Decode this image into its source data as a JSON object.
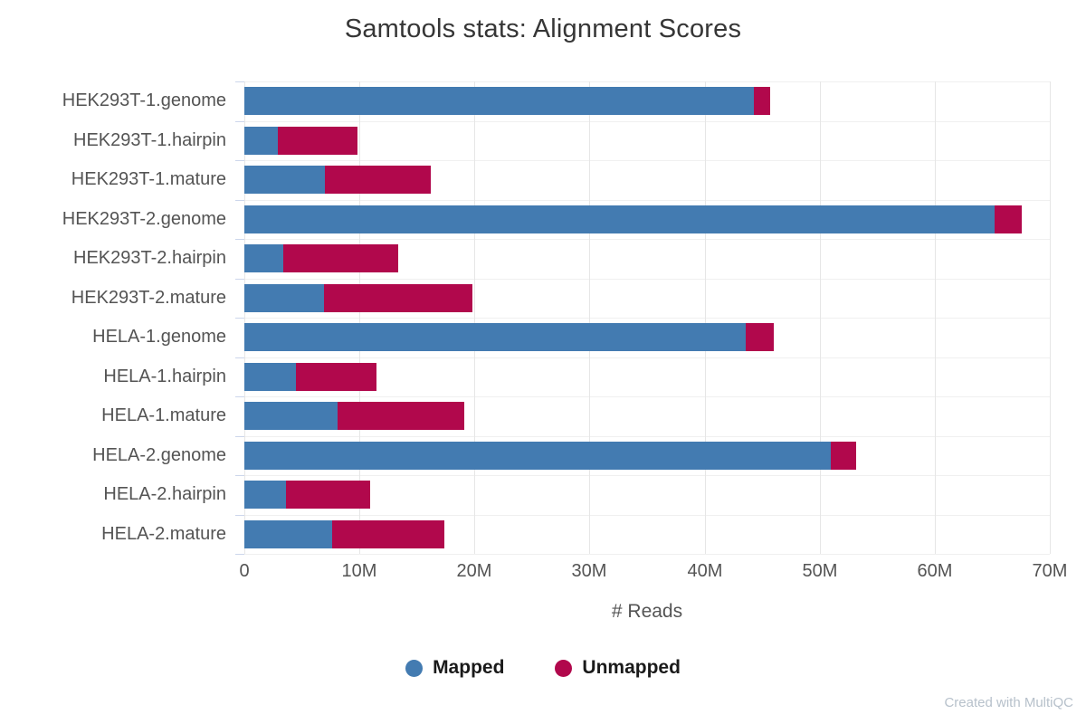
{
  "chart_data": {
    "type": "bar",
    "orientation": "horizontal",
    "stacked": true,
    "title": "Samtools stats: Alignment Scores",
    "xlabel": "# Reads",
    "categories": [
      "HEK293T-1.genome",
      "HEK293T-1.hairpin",
      "HEK293T-1.mature",
      "HEK293T-2.genome",
      "HEK293T-2.hairpin",
      "HEK293T-2.mature",
      "HELA-1.genome",
      "HELA-1.hairpin",
      "HELA-1.mature",
      "HELA-2.genome",
      "HELA-2.hairpin",
      "HELA-2.mature"
    ],
    "series": [
      {
        "name": "Mapped",
        "color": "#437bb1",
        "values": [
          44300000,
          2900000,
          7000000,
          65200000,
          3400000,
          6900000,
          43600000,
          4500000,
          8100000,
          51000000,
          3600000,
          7600000
        ]
      },
      {
        "name": "Unmapped",
        "color": "#b1084c",
        "values": [
          1400000,
          6900000,
          9200000,
          2400000,
          10000000,
          12900000,
          2400000,
          7000000,
          11000000,
          2200000,
          7300000,
          9800000
        ]
      }
    ],
    "xlim": [
      0,
      70000000
    ],
    "x_ticks": [
      {
        "value": 0,
        "label": "0"
      },
      {
        "value": 10000000,
        "label": "10M"
      },
      {
        "value": 20000000,
        "label": "20M"
      },
      {
        "value": 30000000,
        "label": "30M"
      },
      {
        "value": 40000000,
        "label": "40M"
      },
      {
        "value": 50000000,
        "label": "50M"
      },
      {
        "value": 60000000,
        "label": "60M"
      },
      {
        "value": 70000000,
        "label": "70M"
      }
    ],
    "grid": true,
    "legend_position": "bottom"
  },
  "footer": {
    "credit": "Created with MultiQC"
  }
}
